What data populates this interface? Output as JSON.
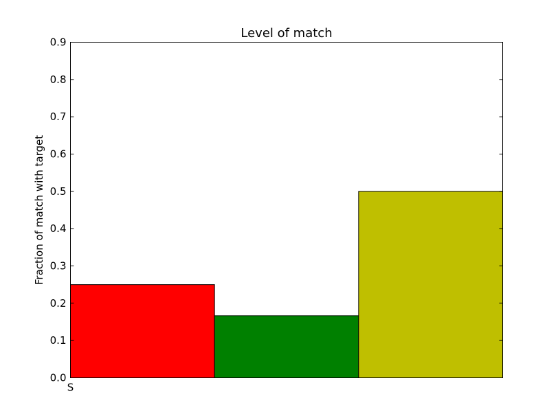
{
  "chart_data": {
    "type": "bar",
    "title": "Level of match",
    "xlabel": "",
    "ylabel": "Fraction of match with target",
    "ylim": [
      0,
      0.9
    ],
    "yticks": [
      "0.0",
      "0.1",
      "0.2",
      "0.3",
      "0.4",
      "0.5",
      "0.6",
      "0.7",
      "0.8",
      "0.9"
    ],
    "xtick_labels": [
      "S"
    ],
    "grid": false,
    "series": [
      {
        "values": [
          0.25,
          0.1667,
          0.5
        ],
        "colors": [
          "#ff0000",
          "#008000",
          "#bfbf00"
        ]
      }
    ]
  }
}
